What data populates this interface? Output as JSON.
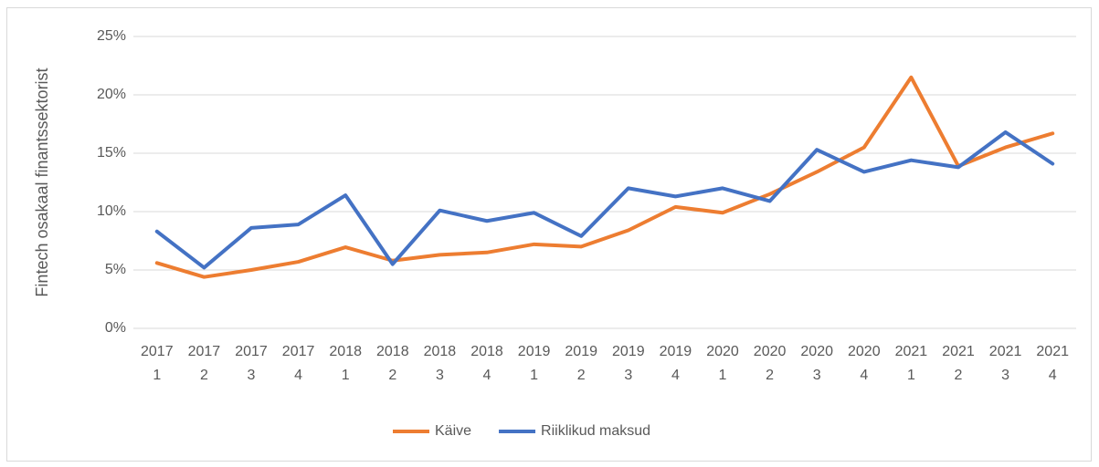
{
  "chart_data": {
    "type": "line",
    "y_axis_label": "Fintech osakaal finantssektorist",
    "categories": [
      [
        "2017",
        "1"
      ],
      [
        "2017",
        "2"
      ],
      [
        "2017",
        "3"
      ],
      [
        "2017",
        "4"
      ],
      [
        "2018",
        "1"
      ],
      [
        "2018",
        "2"
      ],
      [
        "2018",
        "3"
      ],
      [
        "2018",
        "4"
      ],
      [
        "2019",
        "1"
      ],
      [
        "2019",
        "2"
      ],
      [
        "2019",
        "3"
      ],
      [
        "2019",
        "4"
      ],
      [
        "2020",
        "1"
      ],
      [
        "2020",
        "2"
      ],
      [
        "2020",
        "3"
      ],
      [
        "2020",
        "4"
      ],
      [
        "2021",
        "1"
      ],
      [
        "2021",
        "2"
      ],
      [
        "2021",
        "3"
      ],
      [
        "2021",
        "4"
      ]
    ],
    "series": [
      {
        "name": "Käive",
        "color": "#ed7d31",
        "values": [
          5.6,
          4.4,
          5.0,
          5.7,
          6.95,
          5.8,
          6.3,
          6.5,
          7.2,
          7.0,
          8.4,
          10.4,
          9.9,
          11.5,
          13.4,
          15.5,
          21.5,
          13.9,
          15.5,
          16.7
        ]
      },
      {
        "name": "Riiklikud maksud",
        "color": "#4472c4",
        "values": [
          8.3,
          5.2,
          8.6,
          8.9,
          11.4,
          5.5,
          10.1,
          9.2,
          9.9,
          7.9,
          12.0,
          11.3,
          12.0,
          10.9,
          15.3,
          13.4,
          14.4,
          13.8,
          16.8,
          14.1
        ]
      }
    ],
    "ylim": [
      0,
      25
    ],
    "yticks": [
      {
        "value": 0,
        "label": "0%"
      },
      {
        "value": 5,
        "label": "5%"
      },
      {
        "value": 10,
        "label": "10%"
      },
      {
        "value": 15,
        "label": "15%"
      },
      {
        "value": 20,
        "label": "20%"
      },
      {
        "value": 25,
        "label": "25%"
      }
    ],
    "grid": true,
    "legend": "bottom"
  }
}
